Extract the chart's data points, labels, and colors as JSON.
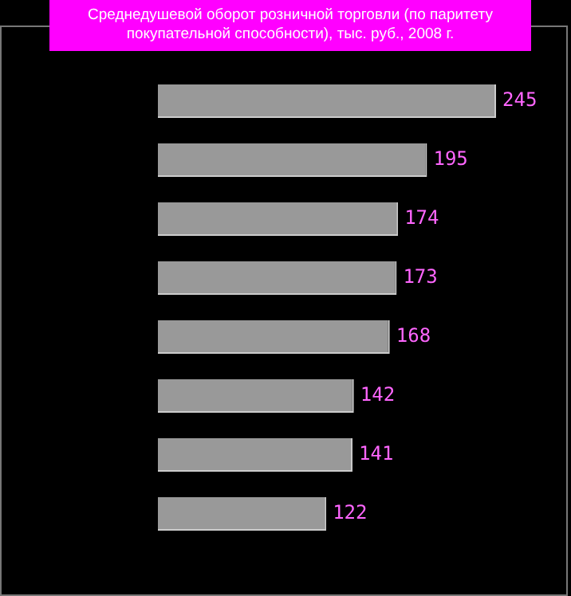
{
  "chart_data": {
    "type": "bar",
    "orientation": "horizontal",
    "title": "Среднедушевой оборот розничной торговли (по паритету покупательной способности), тыс. руб., 2008 г.",
    "categories": [
      null,
      null,
      null,
      null,
      null,
      null,
      null,
      null
    ],
    "values": [
      245,
      195,
      174,
      173,
      168,
      142,
      141,
      122
    ],
    "color": "#999999",
    "legend": false,
    "data_labels": true
  }
}
